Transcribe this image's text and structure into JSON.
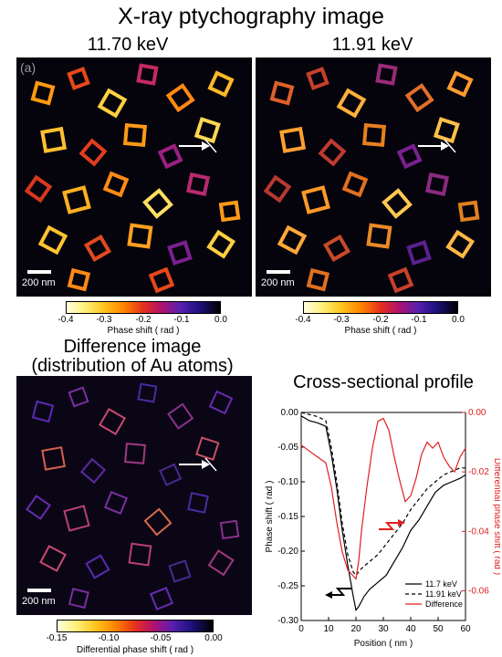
{
  "header": {
    "title": "X-ray ptychography image",
    "energy_left": "11.70 keV",
    "energy_right": "11.91 keV"
  },
  "panels": {
    "letter_a": "(a)",
    "scale_label": "200 nm"
  },
  "colorbar_phase": {
    "ticks": [
      "-0.4",
      "-0.3",
      "-0.2",
      "-0.1",
      "0.0"
    ],
    "label": "Phase shift ( rad )"
  },
  "difference": {
    "title_line1": "Difference image",
    "title_line2": "(distribution of Au atoms)",
    "colorbar_ticks": [
      "-0.15",
      "-0.10",
      "-0.05",
      "0.00"
    ],
    "colorbar_label": "Differential phase shift ( rad )"
  },
  "colors": {
    "curve_11_7": "#000000",
    "curve_11_91": "#000000",
    "curve_difference": "#e02020",
    "image_background": "#05030c"
  },
  "chart_data": {
    "type": "line",
    "title": "Cross-sectional profile",
    "xlabel": "Position ( nm )",
    "ylabel": "Phase shift ( rad )",
    "y2label": "Differential phase shift ( rad )",
    "xlim": [
      0,
      60
    ],
    "ylim": [
      -0.3,
      0.0
    ],
    "y2lim": [
      -0.07,
      0.0
    ],
    "x_ticks": [
      "0",
      "10",
      "20",
      "30",
      "40",
      "50",
      "60"
    ],
    "y_ticks": [
      "0.00",
      "-0.05",
      "-0.10",
      "-0.15",
      "-0.20",
      "-0.25",
      "-0.30"
    ],
    "y2_ticks": [
      "0.00",
      "-0.02",
      "-0.04",
      "-0.06"
    ],
    "legend_position": "lower-right",
    "series": [
      {
        "name": "11.7 keV",
        "axis": "left",
        "style": "solid",
        "x": [
          0,
          3,
          6,
          9,
          11,
          13,
          15,
          17,
          19,
          20,
          21,
          23,
          25,
          28,
          31,
          34,
          37,
          40,
          43,
          46,
          49,
          52,
          55,
          58,
          60
        ],
        "y": [
          -0.005,
          -0.012,
          -0.015,
          -0.02,
          -0.06,
          -0.11,
          -0.17,
          -0.22,
          -0.265,
          -0.285,
          -0.28,
          -0.265,
          -0.255,
          -0.245,
          -0.235,
          -0.215,
          -0.195,
          -0.17,
          -0.155,
          -0.135,
          -0.115,
          -0.105,
          -0.1,
          -0.095,
          -0.09
        ]
      },
      {
        "name": "11.91 keV",
        "axis": "left",
        "style": "dashed",
        "x": [
          0,
          3,
          6,
          9,
          11,
          13,
          15,
          17,
          19,
          20,
          22,
          25,
          28,
          31,
          34,
          37,
          40,
          43,
          46,
          49,
          52,
          55,
          58,
          60
        ],
        "y": [
          0.0,
          -0.003,
          -0.006,
          -0.012,
          -0.05,
          -0.1,
          -0.16,
          -0.205,
          -0.23,
          -0.235,
          -0.225,
          -0.215,
          -0.205,
          -0.19,
          -0.175,
          -0.16,
          -0.14,
          -0.125,
          -0.11,
          -0.1,
          -0.09,
          -0.085,
          -0.08,
          -0.08
        ]
      },
      {
        "name": "Difference",
        "axis": "right",
        "style": "solid",
        "x": [
          0,
          3,
          6,
          9,
          11,
          13,
          15,
          17,
          19,
          20,
          21,
          22,
          24,
          26,
          28,
          30,
          32,
          34,
          36,
          38,
          40,
          42,
          44,
          46,
          48,
          50,
          52,
          54,
          56,
          58,
          60
        ],
        "y": [
          -0.011,
          -0.013,
          -0.015,
          -0.017,
          -0.025,
          -0.037,
          -0.047,
          -0.053,
          -0.055,
          -0.056,
          -0.05,
          -0.04,
          -0.025,
          -0.012,
          -0.003,
          -0.002,
          -0.006,
          -0.015,
          -0.023,
          -0.03,
          -0.028,
          -0.022,
          -0.014,
          -0.01,
          -0.012,
          -0.01,
          -0.015,
          -0.018,
          -0.02,
          -0.015,
          -0.012
        ]
      }
    ]
  }
}
